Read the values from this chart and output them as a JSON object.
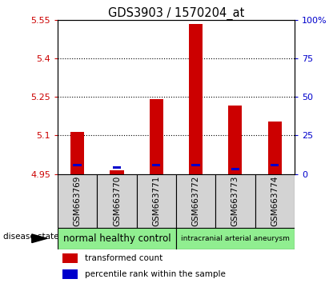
{
  "title": "GDS3903 / 1570204_at",
  "samples": [
    "GSM663769",
    "GSM663770",
    "GSM663771",
    "GSM663772",
    "GSM663773",
    "GSM663774"
  ],
  "red_values": [
    5.115,
    4.965,
    5.24,
    5.535,
    5.215,
    5.155
  ],
  "blue_values": [
    4.985,
    4.975,
    4.985,
    4.985,
    4.97,
    4.985
  ],
  "ymin": 4.95,
  "ymax": 5.55,
  "yticks": [
    4.95,
    5.1,
    5.25,
    5.4,
    5.55
  ],
  "ytick_labels": [
    "4.95",
    "5.1",
    "5.25",
    "5.4",
    "5.55"
  ],
  "y2min": 0,
  "y2max": 100,
  "y2ticks": [
    0,
    25,
    50,
    75,
    100
  ],
  "y2tick_labels": [
    "0",
    "25",
    "50",
    "75",
    "100%"
  ],
  "groups": [
    {
      "label": "normal healthy control",
      "cols": [
        0,
        1,
        2
      ],
      "color": "#90ee90"
    },
    {
      "label": "intracranial arterial aneurysm",
      "cols": [
        3,
        4,
        5
      ],
      "color": "#90ee90"
    }
  ],
  "bar_width": 0.35,
  "red_color": "#cc0000",
  "blue_color": "#0000cc",
  "bg_color": "#d3d3d3",
  "legend_red": "transformed count",
  "legend_blue": "percentile rank within the sample",
  "title_fontsize": 10.5,
  "tick_fontsize": 8,
  "label_fontsize": 7,
  "group_fontsize_1": 8.5,
  "group_fontsize_2": 6.5
}
